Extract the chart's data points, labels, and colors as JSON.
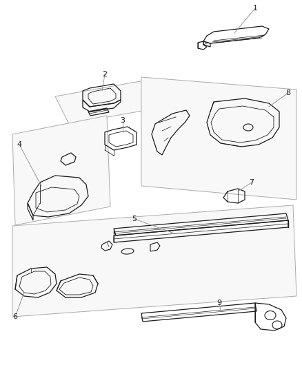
{
  "background_color": "#ffffff",
  "line_color": "#1a1a1a",
  "label_color": "#1a1a1a",
  "leader_line_color": "#999999",
  "fig_width": 4.39,
  "fig_height": 5.33,
  "dpi": 100
}
